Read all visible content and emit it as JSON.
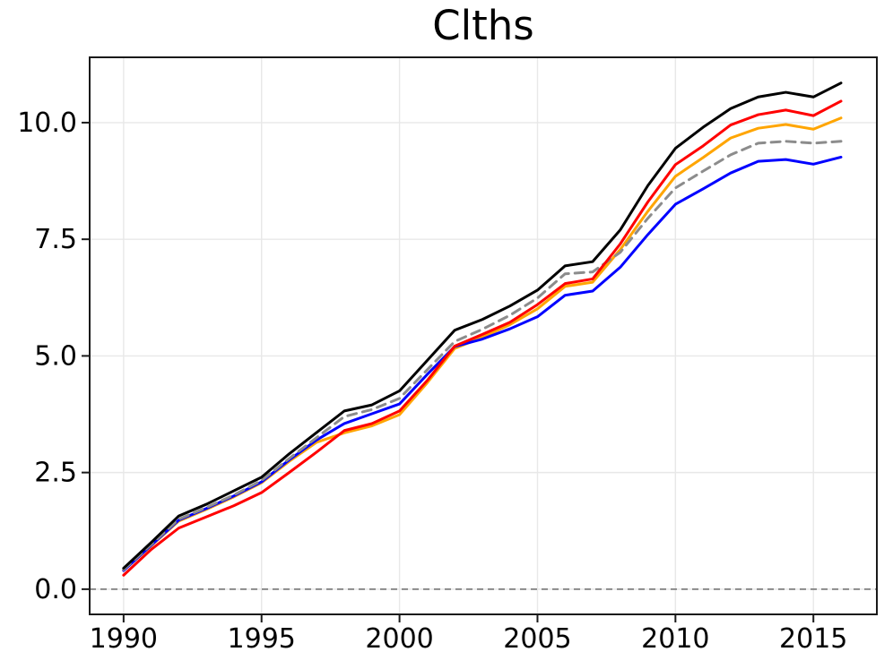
{
  "chart_data": {
    "type": "line",
    "title": "Clths",
    "xlabel": "",
    "ylabel": "",
    "x": [
      1990,
      1991,
      1992,
      1993,
      1994,
      1995,
      1996,
      1997,
      1998,
      1999,
      2000,
      2001,
      2002,
      2003,
      2004,
      2005,
      2006,
      2007,
      2008,
      2009,
      2010,
      2011,
      2012,
      2013,
      2014,
      2015,
      2016
    ],
    "series": [
      {
        "name": "orange",
        "color": "#ffa500",
        "dash": null,
        "width": 3,
        "values": [
          0.4,
          0.93,
          1.46,
          1.71,
          1.98,
          2.28,
          2.74,
          3.15,
          3.35,
          3.5,
          3.74,
          4.42,
          5.16,
          5.4,
          5.67,
          6.01,
          6.49,
          6.58,
          7.28,
          8.1,
          8.85,
          9.25,
          9.67,
          9.88,
          9.96,
          9.86,
          10.1
        ]
      },
      {
        "name": "blue",
        "color": "#0000ff",
        "dash": null,
        "width": 3,
        "values": [
          0.4,
          0.94,
          1.48,
          1.73,
          2.0,
          2.3,
          2.77,
          3.2,
          3.55,
          3.76,
          3.97,
          4.6,
          5.2,
          5.36,
          5.58,
          5.84,
          6.3,
          6.39,
          6.9,
          7.6,
          8.25,
          8.58,
          8.92,
          9.17,
          9.21,
          9.11,
          9.26
        ]
      },
      {
        "name": "gray-dashed",
        "color": "#8c8c8c",
        "dash": "10,7",
        "width": 3,
        "values": [
          0.42,
          0.96,
          1.5,
          1.75,
          2.02,
          2.33,
          2.8,
          3.25,
          3.7,
          3.85,
          4.09,
          4.7,
          5.31,
          5.57,
          5.87,
          6.24,
          6.76,
          6.8,
          7.22,
          7.95,
          8.6,
          8.96,
          9.31,
          9.56,
          9.6,
          9.56,
          9.6
        ]
      },
      {
        "name": "red",
        "color": "#ff0000",
        "dash": null,
        "width": 3,
        "values": [
          0.3,
          0.85,
          1.31,
          1.55,
          1.79,
          2.07,
          2.5,
          2.94,
          3.4,
          3.55,
          3.82,
          4.47,
          5.21,
          5.46,
          5.72,
          6.1,
          6.55,
          6.65,
          7.4,
          8.3,
          9.1,
          9.5,
          9.95,
          10.17,
          10.27,
          10.15,
          10.46
        ]
      },
      {
        "name": "black",
        "color": "#000000",
        "dash": null,
        "width": 3,
        "values": [
          0.45,
          1.0,
          1.57,
          1.82,
          2.11,
          2.4,
          2.9,
          3.36,
          3.82,
          3.95,
          4.25,
          4.9,
          5.55,
          5.78,
          6.07,
          6.41,
          6.93,
          7.02,
          7.7,
          8.65,
          9.45,
          9.9,
          10.3,
          10.55,
          10.65,
          10.55,
          10.85
        ]
      }
    ],
    "xticks": [
      1990,
      1995,
      2000,
      2005,
      2010,
      2015
    ],
    "xtick_labels": [
      "1990",
      "1995",
      "2000",
      "2005",
      "2010",
      "2015"
    ],
    "ytick_values": [
      0,
      2.5,
      5,
      7.5,
      10
    ],
    "ytick_labels": [
      "0.0",
      "2.5",
      "5.0",
      "7.5",
      "10.0"
    ],
    "xlim": [
      1988.77,
      2017.3
    ],
    "ylim": [
      -0.54,
      11.4
    ],
    "grid": true,
    "legend": "none",
    "reference_line": {
      "y": 0,
      "style": "dashed",
      "color": "#808080"
    },
    "style": {
      "grid": "#e8e8e8",
      "spine": "#1a1a1a",
      "text": "#000000",
      "background": "#ffffff"
    }
  }
}
